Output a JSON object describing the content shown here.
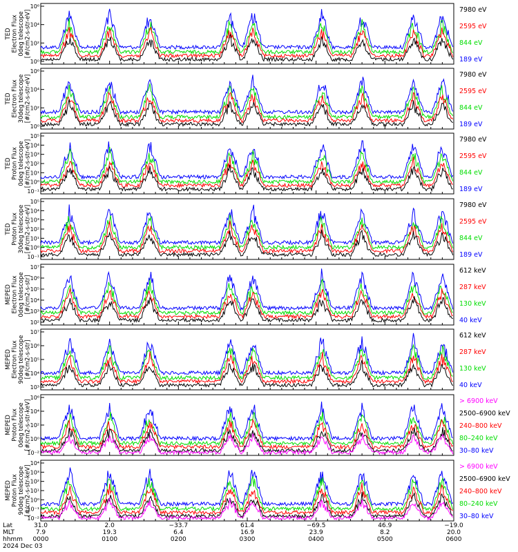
{
  "chart_data": {
    "type": "line",
    "panels": [
      {
        "instrument": "TED",
        "ylabel_lines": [
          "TED",
          "Electron Flux",
          "0deg telescope",
          "[#/cm2-s-str-eV]"
        ],
        "yticks": [
          "10⁶",
          "10⁴",
          "10²",
          "10⁰"
        ],
        "ylog_range": [
          0,
          6
        ],
        "legend": [
          {
            "label": "7980 eV",
            "color": "#000000"
          },
          {
            "label": "2595 eV",
            "color": "#ff0000"
          },
          {
            "label": "844 eV",
            "color": "#00dd00"
          },
          {
            "label": "189 eV",
            "color": "#0000ff"
          }
        ]
      },
      {
        "instrument": "TED",
        "ylabel_lines": [
          "TED",
          "Electron Flux",
          "30deg telescope",
          "[#/cm2-s-str-eV]"
        ],
        "yticks": [
          "10⁶",
          "10⁴",
          "10²",
          "10⁰"
        ],
        "ylog_range": [
          0,
          6
        ],
        "legend": [
          {
            "label": "7980 eV",
            "color": "#000000"
          },
          {
            "label": "2595 eV",
            "color": "#ff0000"
          },
          {
            "label": "844 eV",
            "color": "#00dd00"
          },
          {
            "label": "189 eV",
            "color": "#0000ff"
          }
        ]
      },
      {
        "instrument": "TED",
        "ylabel_lines": [
          "TED",
          "Proton Flux",
          "0deg telescope",
          "[#/cm2-s-str-eV]"
        ],
        "yticks": [
          "10⁵",
          "10⁴",
          "10³",
          "10²",
          "10¹",
          "10⁰",
          "10⁻¹"
        ],
        "ylog_range": [
          -1,
          5
        ],
        "legend": [
          {
            "label": "7980 eV",
            "color": "#000000"
          },
          {
            "label": "2595 eV",
            "color": "#ff0000"
          },
          {
            "label": "844 eV",
            "color": "#00dd00"
          },
          {
            "label": "189 eV",
            "color": "#0000ff"
          }
        ]
      },
      {
        "instrument": "TED",
        "ylabel_lines": [
          "TED",
          "Proton Flux",
          "30deg telescope",
          "[#/cm2-s-str-eV]"
        ],
        "yticks": [
          "10⁵",
          "10⁴",
          "10³",
          "10²",
          "10¹",
          "10⁰",
          "10⁻¹"
        ],
        "ylog_range": [
          -1,
          5
        ],
        "legend": [
          {
            "label": "7980 eV",
            "color": "#000000"
          },
          {
            "label": "2595 eV",
            "color": "#ff0000"
          },
          {
            "label": "844 eV",
            "color": "#00dd00"
          },
          {
            "label": "189 eV",
            "color": "#0000ff"
          }
        ]
      },
      {
        "instrument": "MEPED",
        "ylabel_lines": [
          "MEPED",
          "Electron Flux",
          "0deg telescope",
          "[#/cm2-s-str]"
        ],
        "yticks": [
          "10⁷",
          "10⁶",
          "10⁵",
          "10⁴",
          "10³",
          "10²"
        ],
        "ylog_range": [
          2,
          7
        ],
        "legend": [
          {
            "label": "612 keV",
            "color": "#000000"
          },
          {
            "label": "287 keV",
            "color": "#ff0000"
          },
          {
            "label": "130 keV",
            "color": "#00dd00"
          },
          {
            "label": "40 keV",
            "color": "#0000ff"
          }
        ]
      },
      {
        "instrument": "MEPED",
        "ylabel_lines": [
          "MEPED",
          "Electron Flux",
          "90deg telescope",
          "[#/cm2-s-str]"
        ],
        "yticks": [
          "10⁷",
          "10⁶",
          "10⁵",
          "10⁴",
          "10³"
        ],
        "ylog_range": [
          2.5,
          7
        ],
        "legend": [
          {
            "label": "612 keV",
            "color": "#000000"
          },
          {
            "label": "287 keV",
            "color": "#ff0000"
          },
          {
            "label": "130 keV",
            "color": "#00dd00"
          },
          {
            "label": "40 keV",
            "color": "#0000ff"
          }
        ]
      },
      {
        "instrument": "MEPED",
        "ylabel_lines": [
          "MEPED",
          "Proton Flux",
          "0deg telescope",
          "[#/cm2-s-str-keV]"
        ],
        "yticks": [
          "10⁶",
          "10⁴",
          "10²",
          "10⁰",
          "10⁻²"
        ],
        "ylog_range": [
          -3,
          6
        ],
        "legend": [
          {
            "label": "> 6900 keV",
            "color": "#ff00ff"
          },
          {
            "label": "2500–6900 keV",
            "color": "#000000"
          },
          {
            "label": "240–800 keV",
            "color": "#ff0000"
          },
          {
            "label": "80–240 keV",
            "color": "#00dd00"
          },
          {
            "label": "30–80 keV",
            "color": "#0000ff"
          }
        ]
      },
      {
        "instrument": "MEPED",
        "ylabel_lines": [
          "MEPED",
          "Proton Flux",
          "90deg telescope",
          "[#/cm2-s-str-keV]"
        ],
        "yticks": [
          "10⁴",
          "10³",
          "10²",
          "10¹",
          "10⁰",
          "10⁻¹",
          "10⁻²"
        ],
        "ylog_range": [
          -2.5,
          4.5
        ],
        "legend": [
          {
            "label": "> 6900 keV",
            "color": "#ff00ff"
          },
          {
            "label": "2500–6900 keV",
            "color": "#000000"
          },
          {
            "label": "240–800 keV",
            "color": "#ff0000"
          },
          {
            "label": "80–240 keV",
            "color": "#00dd00"
          },
          {
            "label": "30–80 keV",
            "color": "#0000ff"
          }
        ]
      }
    ],
    "x_axis": {
      "row_labels": [
        "Lat",
        "MLT",
        "hhmm",
        "2024 Dec 03"
      ],
      "lat": [
        "31.0",
        "2.0",
        "−33.7",
        "61.4",
        "−69.5",
        "46.9",
        "−19.0"
      ],
      "mlt": [
        "7.9",
        "19.3",
        "6.4",
        "16.9",
        "23.9",
        "8.2",
        "20.0"
      ],
      "hhmm": [
        "0000",
        "0100",
        "0200",
        "0300",
        "0400",
        "0500",
        "0600"
      ]
    },
    "passes_hhmm": [
      "0025",
      "0100",
      "0135",
      "0245",
      "0305",
      "0405",
      "0440",
      "0525",
      "0550"
    ]
  }
}
